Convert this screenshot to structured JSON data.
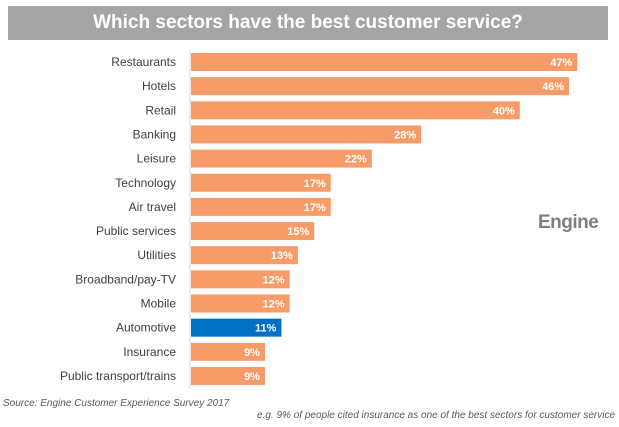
{
  "chart_data": {
    "type": "bar",
    "orientation": "horizontal",
    "title": "Which sectors have the best customer service?",
    "categories": [
      "Restaurants",
      "Hotels",
      "Retail",
      "Banking",
      "Leisure",
      "Technology",
      "Air travel",
      "Public services",
      "Utilities",
      "Broadband/pay-TV",
      "Mobile",
      "Automotive",
      "Insurance",
      "Public transport/trains"
    ],
    "values": [
      47,
      46,
      40,
      28,
      22,
      17,
      17,
      15,
      13,
      12,
      12,
      11,
      9,
      9
    ],
    "data_labels": [
      "47%",
      "46%",
      "40%",
      "28%",
      "22%",
      "17%",
      "17%",
      "15%",
      "13%",
      "12%",
      "12%",
      "11%",
      "9%",
      "9%"
    ],
    "unit": "%",
    "colors": {
      "default": "#f79b69",
      "highlight": "#0070c0",
      "title_bg": "#a5a5a5"
    },
    "highlight_category": "Automotive",
    "grid": false,
    "legend": "none"
  },
  "logo": "Engine",
  "source": "Source: Engine Customer Experience Survey 2017",
  "note": "e.g. 9% of  people cited insurance as one of the best sectors for customer service"
}
